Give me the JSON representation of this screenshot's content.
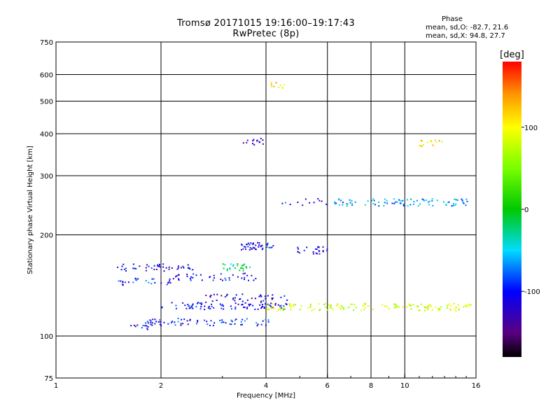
{
  "chart_data": {
    "type": "scatter",
    "title": "Tromsø 20171015 19:16:00–19:17:43",
    "subtitle": "RwPretec (8p)",
    "xlabel": "Frequency [MHz]",
    "ylabel": "Stationary phase Virtual Height [km]",
    "x_scale": "log",
    "y_scale": "log",
    "xlim": [
      1,
      16
    ],
    "ylim": [
      75,
      750
    ],
    "x_ticks": [
      1,
      2,
      4,
      6,
      8,
      10,
      16
    ],
    "y_ticks": [
      75,
      100,
      200,
      300,
      400,
      500,
      600,
      750
    ],
    "grid": true,
    "colorbar": {
      "label": "[deg]",
      "range": [
        -180,
        180
      ],
      "ticks": [
        100,
        0,
        -100
      ]
    },
    "stats": {
      "header": "Phase",
      "line_o": "mean, sd,O: -82.7, 21.6",
      "line_x": "mean, sd,X: 94.8, 27.7"
    },
    "traces": [
      {
        "x_range": [
          2.0,
          4.6
        ],
        "y": 123,
        "phase": -110,
        "count": 90
      },
      {
        "x_range": [
          4.0,
          15.5
        ],
        "y": 122,
        "phase": 80,
        "count": 140
      },
      {
        "x_range": [
          1.8,
          4.3
        ],
        "y": 110,
        "phase": -95,
        "count": 70
      },
      {
        "x_range": [
          1.6,
          1.9
        ],
        "y": 107,
        "phase": -110,
        "count": 14
      },
      {
        "x_range": [
          1.5,
          2.5
        ],
        "y": 160,
        "phase": -110,
        "count": 45
      },
      {
        "x_range": [
          1.5,
          2.3
        ],
        "y": 145,
        "phase": -100,
        "count": 30
      },
      {
        "x_range": [
          2.2,
          3.8
        ],
        "y": 150,
        "phase": -105,
        "count": 40
      },
      {
        "x_range": [
          2.6,
          4.6
        ],
        "y": 130,
        "phase": -120,
        "count": 40
      },
      {
        "x_range": [
          3.4,
          4.2
        ],
        "y": 185,
        "phase": -110,
        "count": 45
      },
      {
        "x_range": [
          4.8,
          6.0
        ],
        "y": 180,
        "phase": -110,
        "count": 25
      },
      {
        "x_range": [
          6.2,
          15.5
        ],
        "y": 250,
        "phase": -60,
        "count": 90
      },
      {
        "x_range": [
          4.3,
          6.0
        ],
        "y": 250,
        "phase": -100,
        "count": 12
      },
      {
        "x_range": [
          11.0,
          13.0
        ],
        "y": 375,
        "phase": 110,
        "count": 14
      },
      {
        "x_range": [
          3.3,
          4.0
        ],
        "y": 380,
        "phase": -120,
        "count": 14
      },
      {
        "x_range": [
          4.1,
          4.6
        ],
        "y": 560,
        "phase": 110,
        "count": 10
      },
      {
        "x_range": [
          3.0,
          3.6
        ],
        "y": 160,
        "phase": -20,
        "count": 25
      }
    ]
  }
}
